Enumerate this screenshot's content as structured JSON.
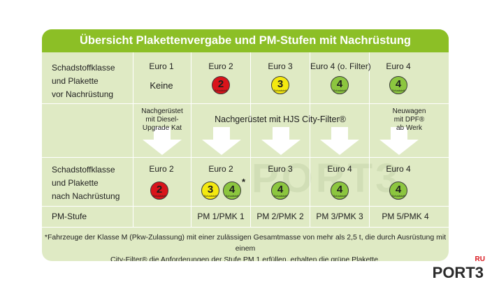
{
  "title": "Übersicht Plakettenvergabe und PM-Stufen mit Nachrüstung",
  "row_before": {
    "label_lines": [
      "Schadstoffklasse",
      "und Plakette",
      "vor Nachrüstung"
    ],
    "headers": [
      "Euro 1",
      "Euro 2",
      "Euro 3",
      "Euro 4 (o. Filter)",
      "Euro 4"
    ],
    "none_text": "Keine",
    "plaques": [
      {
        "num": "2",
        "color": "#d9141b"
      },
      {
        "num": "3",
        "color": "#f4e90f"
      },
      {
        "num": "4",
        "color": "#8cc63f"
      },
      {
        "num": "4",
        "color": "#8cc63f"
      }
    ]
  },
  "row_middle": {
    "col1_lines": [
      "Nachgerüstet",
      "mit Diesel-",
      "Upgrade Kat"
    ],
    "center_text": "Nachgerüstet mit HJS City-Filter®",
    "col5_lines": [
      "Neuwagen",
      "mit DPF®",
      "ab Werk"
    ]
  },
  "row_after": {
    "label_lines": [
      "Schadstoffklasse",
      "und Plakette",
      "nach Nachrüstung"
    ],
    "headers": [
      "Euro 2",
      "Euro 2",
      "Euro 3",
      "Euro 4",
      "Euro 4"
    ],
    "asterisk": "*",
    "plaques": [
      {
        "num": "2",
        "color": "#d9141b"
      },
      {
        "num": "3",
        "color": "#f4e90f"
      },
      {
        "num": "4",
        "color": "#8cc63f"
      },
      {
        "num": "4",
        "color": "#8cc63f"
      },
      {
        "num": "4",
        "color": "#8cc63f"
      },
      {
        "num": "4",
        "color": "#8cc63f"
      }
    ]
  },
  "row_pm": {
    "label": "PM-Stufe",
    "values": [
      "PM 1/PMK 1",
      "PM 2/PMK 2",
      "PM 3/PMK 3",
      "PM 5/PMK 4"
    ]
  },
  "footnote_lines": [
    "*Fahrzeuge der Klasse M (Pkw-Zulassung) mit einer zulässigen Gesamtmasse von mehr als 2,5 t, die durch Ausrüstung mit einem",
    "City-Filter® die Anforderungen der Stufe PM 1 erfüllen, erhalten die grüne Plakette."
  ],
  "plaque_small_text": "Schadstoff",
  "watermark": "PORT3",
  "logo": {
    "name": "PORT3",
    "ru": "RU"
  },
  "colors": {
    "title_bg": "#8cbf26",
    "card_bg": "#dfeac4",
    "arrow": "#ffffff"
  }
}
